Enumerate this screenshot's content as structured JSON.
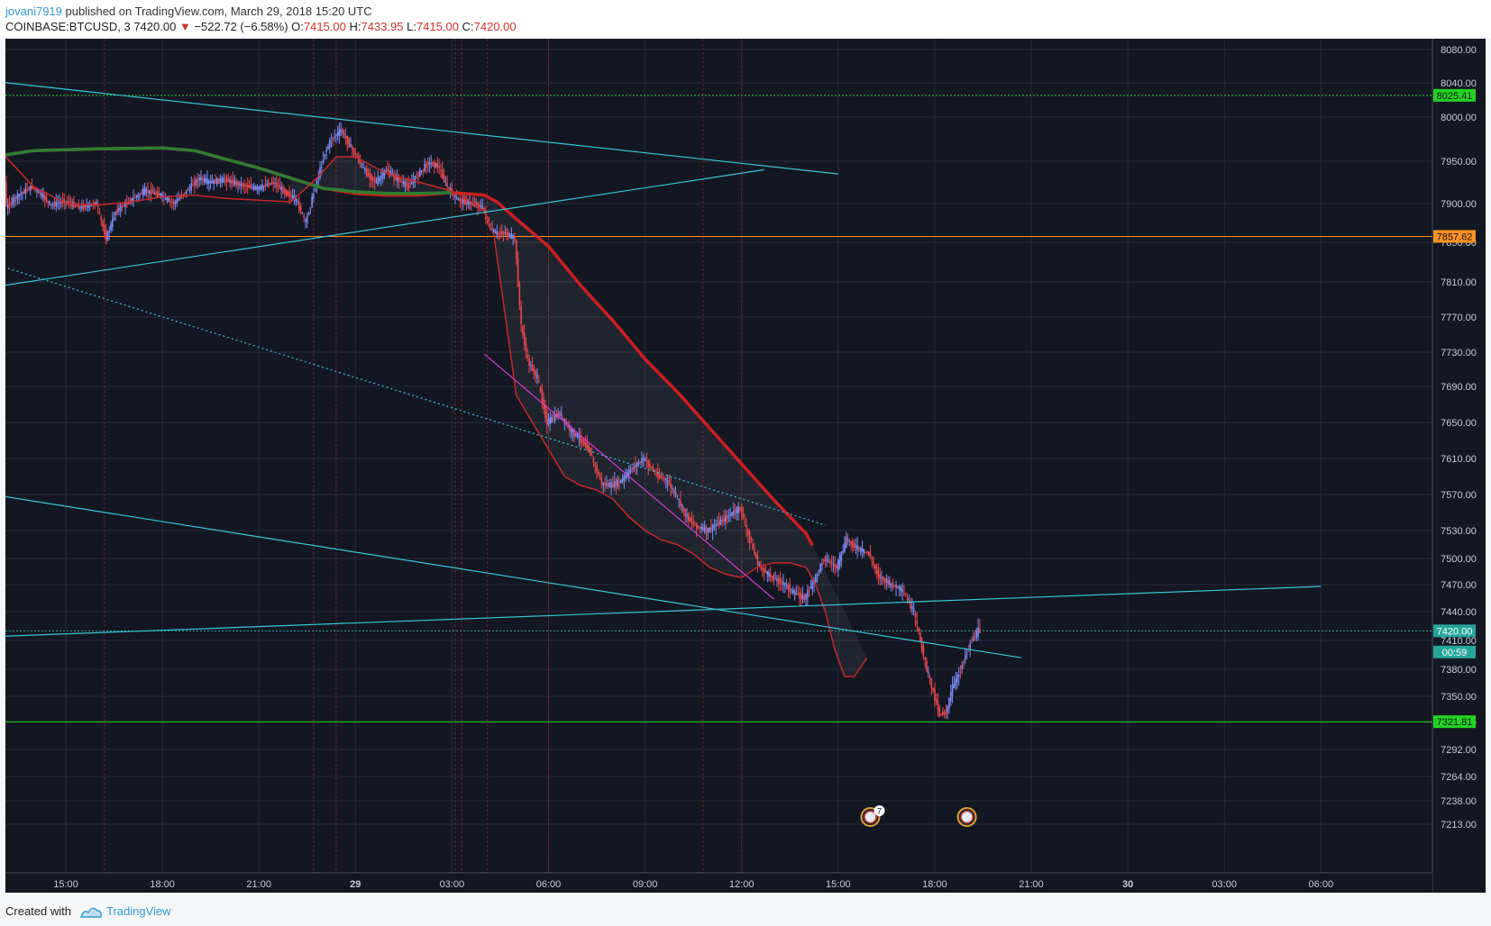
{
  "header": {
    "user": "jovani7919",
    "published_text": " published on TradingView.com, March 29, 2018 15:20 UTC",
    "symbol": "COINBASE:BTCUSD, 3",
    "last": "7420.00",
    "down_arrow": "▼",
    "change": "−522.72 (−6.58%)",
    "o_label": "O:",
    "o_val": "7415.00",
    "h_label": "H:",
    "h_val": "7433.95",
    "l_label": "L:",
    "l_val": "7415.00",
    "c_label": "C:",
    "c_val": "7420.00"
  },
  "footer": {
    "created": "Created with",
    "brand": "TradingView"
  },
  "colors": {
    "background": "#131722",
    "grid": "#262b38",
    "axis_text": "#c8ccd4",
    "up": "#7a8cf5",
    "down": "#e8474b",
    "cyan": "#37c5d8",
    "magenta": "#d63ad8",
    "ma_red": "#cc1f1f",
    "ma_green": "#2e7d32",
    "label_green": "#22d322",
    "label_orange": "#ff9224",
    "label_teal": "#26a69a"
  },
  "chart_data": {
    "type": "candlestick",
    "title": "",
    "y_ticks": [
      "8080.00",
      "8040.00",
      "8000.00",
      "7950.00",
      "7900.00",
      "7850.00",
      "7810.00",
      "7770.00",
      "7730.00",
      "7690.00",
      "7650.00",
      "7610.00",
      "7570.00",
      "7530.00",
      "7500.00",
      "7470.00",
      "7440.00",
      "7410.00",
      "7380.00",
      "7350.00",
      "7321.00",
      "7292.00",
      "7264.00",
      "7238.00",
      "7213.00"
    ],
    "y_tick_values": [
      8080,
      8040,
      8000,
      7950,
      7900,
      7850,
      7810,
      7770,
      7730,
      7690,
      7650,
      7610,
      7570,
      7530,
      7500,
      7470,
      7440,
      7410,
      7380,
      7350,
      7321,
      7292,
      7264,
      7238,
      7213
    ],
    "x_ticks": [
      {
        "label": "15:00",
        "h": 15,
        "bold": false
      },
      {
        "label": "18:00",
        "h": 18,
        "bold": false
      },
      {
        "label": "21:00",
        "h": 21,
        "bold": false
      },
      {
        "label": "29",
        "h": 24,
        "bold": true
      },
      {
        "label": "03:00",
        "h": 27,
        "bold": false
      },
      {
        "label": "06:00",
        "h": 30,
        "bold": false
      },
      {
        "label": "09:00",
        "h": 33,
        "bold": false
      },
      {
        "label": "12:00",
        "h": 36,
        "bold": false
      },
      {
        "label": "15:00",
        "h": 39,
        "bold": false
      },
      {
        "label": "18:00",
        "h": 42,
        "bold": false
      },
      {
        "label": "21:00",
        "h": 45,
        "bold": false
      },
      {
        "label": "30",
        "h": 48,
        "bold": true
      },
      {
        "label": "03:00",
        "h": 51,
        "bold": false
      },
      {
        "label": "06:00",
        "h": 54,
        "bold": false
      }
    ],
    "price_labels": [
      {
        "text": "8025.41",
        "value": 8025.41,
        "color": "#22d322"
      },
      {
        "text": "7857.62",
        "value": 7857.62,
        "color": "#ff9224"
      },
      {
        "text": "7420.00",
        "value": 7420.0,
        "color": "#26a69a"
      },
      {
        "text": "00:59",
        "value": 7398,
        "color": "#26a69a"
      },
      {
        "text": "7321.81",
        "value": 7321.81,
        "color": "#22d322"
      }
    ],
    "horizontal_levels": [
      {
        "value": 8025.41,
        "color": "#22d322",
        "dotted": true
      },
      {
        "value": 7857.62,
        "color": "#ff9224",
        "dotted": false
      },
      {
        "value": 7420.0,
        "color": "#26a69a",
        "dotted": true
      },
      {
        "value": 7321.81,
        "color": "#22d322",
        "dotted": false
      }
    ],
    "vertical_markers_h": [
      16.2,
      22.7,
      23.4,
      27.1,
      27.3,
      28.1,
      30.0,
      34.8,
      36.0
    ],
    "trendlines": [
      {
        "color": "#37c5d8",
        "dashed": false,
        "points": [
          [
            12.0,
            8045
          ],
          [
            39.0,
            7935
          ]
        ]
      },
      {
        "color": "#37c5d8",
        "dashed": false,
        "points": [
          [
            12.0,
            7800
          ],
          [
            36.7,
            7940
          ]
        ]
      },
      {
        "color": "#37c5d8",
        "dashed": true,
        "points": [
          [
            12.0,
            7836
          ],
          [
            38.6,
            7536
          ]
        ]
      },
      {
        "color": "#37c5d8",
        "dashed": false,
        "points": [
          [
            12.0,
            7574
          ],
          [
            44.7,
            7392
          ]
        ]
      },
      {
        "color": "#37c5d8",
        "dashed": false,
        "points": [
          [
            12.0,
            7413
          ],
          [
            54.0,
            7468
          ]
        ]
      },
      {
        "color": "#d63ad8",
        "dashed": false,
        "points": [
          [
            28.0,
            7728
          ],
          [
            37.0,
            7454
          ]
        ]
      }
    ],
    "event_icons": [
      {
        "h": 40.0,
        "badge": "7"
      },
      {
        "h": 43.0,
        "badge": ""
      }
    ],
    "ma_long": [
      [
        12,
        7940
      ],
      [
        12.7,
        7955
      ],
      [
        14,
        7962
      ],
      [
        16,
        7964
      ],
      [
        18,
        7965
      ],
      [
        19,
        7962
      ],
      [
        20,
        7952
      ],
      [
        21,
        7942
      ],
      [
        22,
        7930
      ],
      [
        23,
        7918
      ],
      [
        24,
        7912
      ],
      [
        25,
        7910
      ],
      [
        26,
        7910
      ],
      [
        27,
        7913
      ],
      [
        28,
        7910
      ],
      [
        28.4,
        7902
      ],
      [
        29,
        7880
      ],
      [
        30,
        7846
      ],
      [
        31,
        7806
      ],
      [
        32,
        7766
      ],
      [
        33,
        7722
      ],
      [
        34,
        7684
      ],
      [
        35,
        7644
      ],
      [
        36,
        7604
      ],
      [
        37,
        7564
      ],
      [
        38,
        7527
      ],
      [
        38.2,
        7514
      ]
    ],
    "ma_green_overlay": [
      [
        12,
        7940
      ],
      [
        12.7,
        7955
      ],
      [
        14,
        7962
      ],
      [
        16,
        7964
      ],
      [
        18,
        7965
      ],
      [
        19,
        7962
      ],
      [
        20,
        7952
      ],
      [
        21,
        7942
      ],
      [
        22,
        7930
      ],
      [
        23,
        7918
      ],
      [
        24,
        7914
      ],
      [
        25,
        7912
      ],
      [
        26,
        7912
      ],
      [
        27,
        7913
      ]
    ],
    "ma_short": [
      [
        12,
        8030
      ],
      [
        13,
        7960
      ],
      [
        14,
        7920
      ],
      [
        15,
        7900
      ],
      [
        16,
        7898
      ],
      [
        17,
        7902
      ],
      [
        18,
        7908
      ],
      [
        19,
        7910
      ],
      [
        20,
        7906
      ],
      [
        21,
        7904
      ],
      [
        22,
        7902
      ],
      [
        22.8,
        7930
      ],
      [
        23.4,
        7955
      ],
      [
        24,
        7955
      ],
      [
        25,
        7935
      ],
      [
        26,
        7925
      ],
      [
        27,
        7915
      ],
      [
        27.5,
        7905
      ],
      [
        28,
        7890
      ],
      [
        28.3,
        7860
      ],
      [
        28.7,
        7760
      ],
      [
        29,
        7680
      ],
      [
        29.5,
        7650
      ],
      [
        30,
        7620
      ],
      [
        30.5,
        7590
      ],
      [
        31,
        7580
      ],
      [
        31.5,
        7575
      ],
      [
        32,
        7565
      ],
      [
        32.5,
        7545
      ],
      [
        33,
        7530
      ],
      [
        33.5,
        7520
      ],
      [
        34,
        7515
      ],
      [
        34.5,
        7505
      ],
      [
        35,
        7490
      ],
      [
        35.5,
        7482
      ],
      [
        36,
        7478
      ],
      [
        36.5,
        7490
      ],
      [
        37,
        7495
      ],
      [
        37.5,
        7495
      ],
      [
        38,
        7490
      ],
      [
        38.3,
        7470
      ],
      [
        38.6,
        7440
      ],
      [
        38.9,
        7400
      ],
      [
        39.2,
        7372
      ],
      [
        39.5,
        7372
      ],
      [
        39.9,
        7392
      ]
    ],
    "price_path": [
      [
        12,
        8040
      ],
      [
        12.3,
        8032
      ],
      [
        12.6,
        8030
      ],
      [
        13,
        8025
      ],
      [
        13.2,
        7895
      ],
      [
        13.5,
        7908
      ],
      [
        14,
        7920
      ],
      [
        14.3,
        7910
      ],
      [
        14.6,
        7898
      ],
      [
        15,
        7903
      ],
      [
        15.5,
        7895
      ],
      [
        16,
        7900
      ],
      [
        16.3,
        7855
      ],
      [
        16.6,
        7890
      ],
      [
        17,
        7902
      ],
      [
        17.5,
        7915
      ],
      [
        18,
        7910
      ],
      [
        18.4,
        7900
      ],
      [
        18.8,
        7915
      ],
      [
        19.2,
        7930
      ],
      [
        19.5,
        7925
      ],
      [
        20,
        7928
      ],
      [
        20.5,
        7922
      ],
      [
        21,
        7918
      ],
      [
        21.5,
        7925
      ],
      [
        21.8,
        7915
      ],
      [
        22.2,
        7905
      ],
      [
        22.5,
        7876
      ],
      [
        22.8,
        7920
      ],
      [
        23.1,
        7960
      ],
      [
        23.3,
        7975
      ],
      [
        23.6,
        7985
      ],
      [
        24,
        7960
      ],
      [
        24.4,
        7935
      ],
      [
        24.7,
        7925
      ],
      [
        25,
        7940
      ],
      [
        25.3,
        7930
      ],
      [
        25.7,
        7920
      ],
      [
        26,
        7935
      ],
      [
        26.3,
        7948
      ],
      [
        26.6,
        7945
      ],
      [
        26.9,
        7920
      ],
      [
        27.2,
        7905
      ],
      [
        27.6,
        7900
      ],
      [
        28,
        7895
      ],
      [
        28.2,
        7870
      ],
      [
        28.4,
        7862
      ],
      [
        28.7,
        7862
      ],
      [
        29.0,
        7855
      ],
      [
        29.2,
        7760
      ],
      [
        29.4,
        7720
      ],
      [
        29.7,
        7700
      ],
      [
        30,
        7650
      ],
      [
        30.4,
        7660
      ],
      [
        30.7,
        7642
      ],
      [
        31,
        7633
      ],
      [
        31.3,
        7620
      ],
      [
        31.7,
        7582
      ],
      [
        32,
        7580
      ],
      [
        32.3,
        7585
      ],
      [
        32.7,
        7601
      ],
      [
        33,
        7610
      ],
      [
        33.4,
        7592
      ],
      [
        33.7,
        7586
      ],
      [
        34,
        7570
      ],
      [
        34.3,
        7548
      ],
      [
        34.6,
        7535
      ],
      [
        35,
        7530
      ],
      [
        35.4,
        7540
      ],
      [
        35.7,
        7548
      ],
      [
        36,
        7555
      ],
      [
        36.3,
        7520
      ],
      [
        36.6,
        7490
      ],
      [
        37,
        7478
      ],
      [
        37.4,
        7470
      ],
      [
        37.7,
        7460
      ],
      [
        38,
        7455
      ],
      [
        38.3,
        7475
      ],
      [
        38.6,
        7500
      ],
      [
        39,
        7490
      ],
      [
        39.3,
        7520
      ],
      [
        39.6,
        7512
      ],
      [
        40,
        7505
      ],
      [
        40.3,
        7480
      ],
      [
        40.7,
        7470
      ],
      [
        41,
        7465
      ],
      [
        41.4,
        7440
      ],
      [
        41.6,
        7410
      ],
      [
        41.8,
        7380
      ],
      [
        42.0,
        7355
      ],
      [
        42.2,
        7330
      ],
      [
        42.4,
        7332
      ],
      [
        42.6,
        7360
      ],
      [
        42.8,
        7375
      ],
      [
        43.0,
        7395
      ],
      [
        43.2,
        7410
      ],
      [
        43.4,
        7420
      ]
    ],
    "x_hour_range": [
      12.0,
      54.8
    ]
  }
}
